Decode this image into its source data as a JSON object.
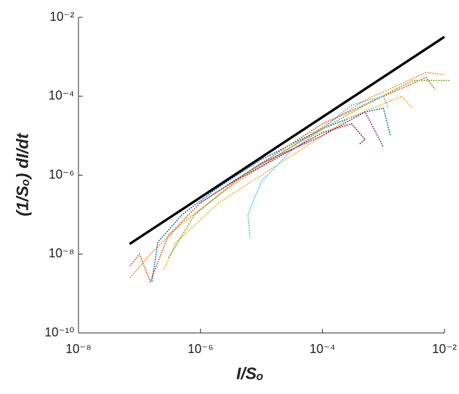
{
  "chart_data": {
    "type": "line",
    "xlabel": "I/Sₒ",
    "ylabel": "(1/Sₒ) dI/dt",
    "xscale": "log",
    "yscale": "log",
    "xlim": [
      1e-08,
      0.01
    ],
    "ylim": [
      1e-10,
      0.01
    ],
    "xticks": [
      {
        "value": 1e-08,
        "label": "10⁻⁸"
      },
      {
        "value": 1e-06,
        "label": "10⁻⁶"
      },
      {
        "value": 0.0001,
        "label": "10⁻⁴"
      },
      {
        "value": 0.01,
        "label": "10⁻²"
      }
    ],
    "yticks": [
      {
        "value": 1e-10,
        "label": "10⁻¹⁰"
      },
      {
        "value": 1e-08,
        "label": "10⁻⁸"
      },
      {
        "value": 1e-06,
        "label": "10⁻⁶"
      },
      {
        "value": 0.0001,
        "label": "10⁻⁴"
      },
      {
        "value": 0.01,
        "label": "10⁻²"
      }
    ],
    "series": [
      {
        "color": "#0072bd",
        "x": [
          1.6e-07,
          2e-07,
          5e-07,
          2e-06,
          1e-05,
          0.0001,
          0.0005,
          0.001,
          0.0013
        ],
        "values": [
          2e-09,
          2e-08,
          1e-07,
          5e-07,
          2.5e-06,
          1.5e-05,
          4e-05,
          5e-05,
          1e-05
        ]
      },
      {
        "color": "#d95319",
        "x": [
          7e-08,
          1e-07,
          1.5e-07,
          3e-07,
          1e-06,
          1e-05,
          0.0001,
          0.001,
          0.005,
          0.007
        ],
        "values": [
          5e-09,
          1e-08,
          2e-09,
          3e-08,
          2e-07,
          2e-06,
          2e-05,
          0.0001,
          0.0003,
          0.00015
        ]
      },
      {
        "color": "#f08c2a",
        "x": [
          7e-08,
          1.5e-07,
          5e-07,
          3e-06,
          3e-05,
          0.0005,
          0.005,
          0.01
        ],
        "values": [
          2.5e-09,
          1e-08,
          6e-08,
          5e-07,
          5e-06,
          8e-05,
          0.0004,
          0.00035
        ]
      },
      {
        "color": "#edb120",
        "x": [
          2.5e-07,
          4e-07,
          2e-06,
          2e-05,
          0.0003,
          0.002,
          0.003
        ],
        "values": [
          4e-09,
          2e-08,
          2e-07,
          2e-06,
          3e-05,
          0.0001,
          5e-05
        ]
      },
      {
        "color": "#7e2f8e",
        "x": [
          1e-06,
          1e-05,
          0.0001,
          0.0005,
          0.0008,
          0.001
        ],
        "values": [
          2e-07,
          2e-06,
          1e-05,
          4e-05,
          1e-05,
          5e-06
        ]
      },
      {
        "color": "#77ac30",
        "x": [
          3e-07,
          8e-07,
          5e-06,
          5e-05,
          0.0005,
          0.003,
          0.012
        ],
        "values": [
          8e-09,
          1e-07,
          1e-06,
          8e-06,
          6e-05,
          0.00025,
          0.00025
        ]
      },
      {
        "color": "#4dbeee",
        "x": [
          6.5e-06,
          6e-06,
          1e-05,
          3e-05,
          0.0001,
          0.0003,
          0.001,
          0.0012
        ],
        "values": [
          2.5e-08,
          1e-07,
          7e-07,
          4e-06,
          1.5e-05,
          6e-05,
          0.0001,
          5e-05
        ]
      },
      {
        "color": "#a2142f",
        "x": [
          3e-06,
          2e-05,
          0.0001,
          0.0003,
          0.0005,
          0.0004
        ],
        "values": [
          6e-07,
          3e-06,
          1.2e-05,
          2e-05,
          8e-06,
          6e-06
        ]
      },
      {
        "color": "#000000",
        "x": [
          6.9e-08,
          0.01
        ],
        "values": [
          1.8e-08,
          0.0032
        ]
      }
    ]
  }
}
